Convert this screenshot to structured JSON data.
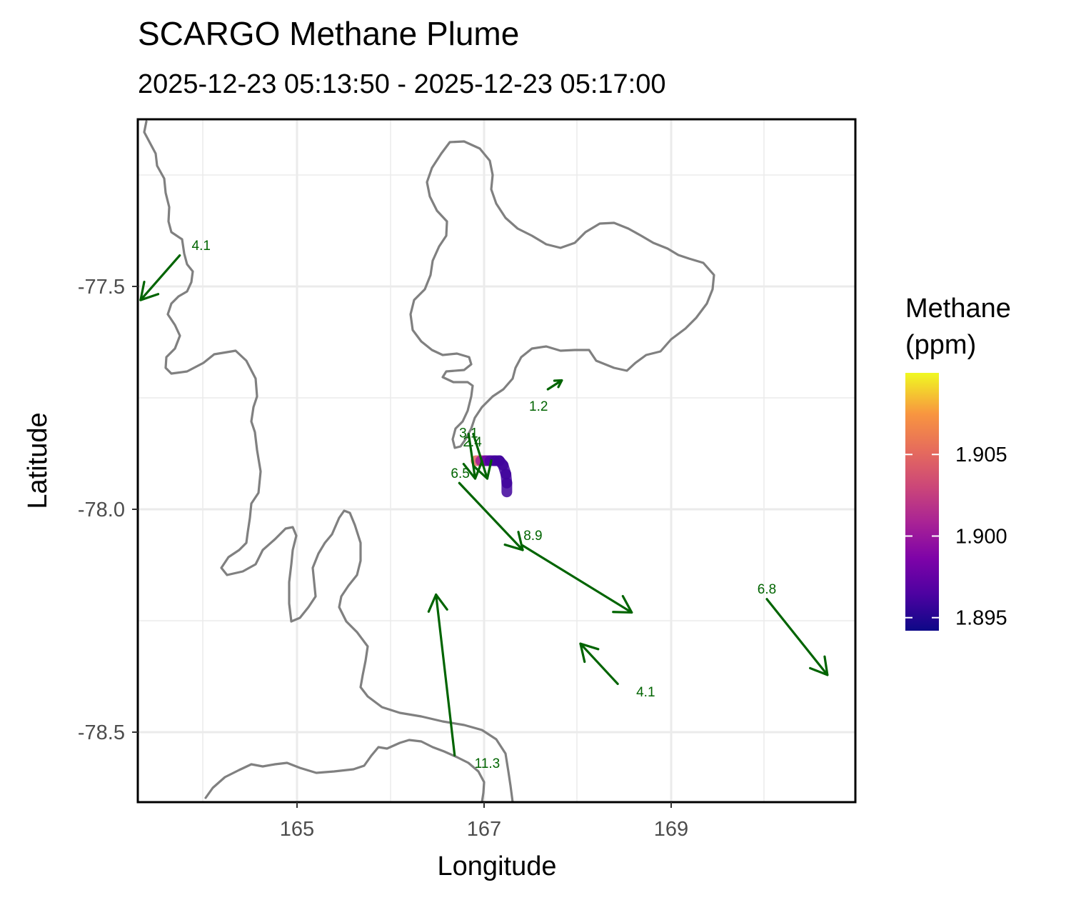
{
  "title": "SCARGO Methane Plume",
  "subtitle": "2025-12-23 05:13:50 - 2025-12-23 05:17:00",
  "x_axis": {
    "label": "Longitude",
    "ticks": [
      {
        "value": 165,
        "label": "165"
      },
      {
        "value": 167,
        "label": "167"
      },
      {
        "value": 169,
        "label": "169"
      }
    ],
    "range": [
      163.3,
      171.0
    ]
  },
  "y_axis": {
    "label": "Latitude",
    "ticks": [
      {
        "value": -77.5,
        "label": "-77.5"
      },
      {
        "value": -78.0,
        "label": "-78.0"
      },
      {
        "value": -78.5,
        "label": "-78.5"
      }
    ],
    "range": [
      -78.655,
      -77.125
    ]
  },
  "legend": {
    "title_line1": "Methane",
    "title_line2": "(ppm)",
    "range": [
      1.8942,
      1.91
    ],
    "ticks": [
      {
        "value": 1.905,
        "label": "1.905"
      },
      {
        "value": 1.9,
        "label": "1.900"
      },
      {
        "value": 1.895,
        "label": "1.895"
      }
    ]
  },
  "colors": {
    "wind": "#006400",
    "coast": "#808080",
    "panel_border": "#000000"
  },
  "wind_vectors": [
    {
      "label": "4.1",
      "lon0": 163.75,
      "lat0": -77.43,
      "lon1": 163.33,
      "lat1": -77.53,
      "label_lon": 163.98,
      "label_lat": -77.41
    },
    {
      "label": "1.2",
      "lon0": 167.7,
      "lat0": -77.73,
      "lon1": 167.85,
      "lat1": -77.71,
      "label_lon": 167.6,
      "label_lat": -77.77
    },
    {
      "label": "3.1",
      "lon0": 166.9,
      "lat0": -77.83,
      "lon1": 167.05,
      "lat1": -77.93,
      "label_lon": 166.85,
      "label_lat": -77.83
    },
    {
      "label": "2.4",
      "lon0": 166.85,
      "lat0": -77.83,
      "lon1": 166.92,
      "lat1": -77.93,
      "label_lon": 166.89,
      "label_lat": -77.85
    },
    {
      "label": "6.5",
      "lon0": 166.75,
      "lat0": -77.94,
      "lon1": 167.43,
      "lat1": -78.09,
      "label_lon": 166.76,
      "label_lat": -77.92
    },
    {
      "label": "8.9",
      "lon0": 167.43,
      "lat0": -78.08,
      "lon1": 168.6,
      "lat1": -78.23,
      "label_lon": 167.54,
      "label_lat": -78.06
    },
    {
      "label": "6.8",
      "lon0": 170.05,
      "lat0": -78.2,
      "lon1": 170.7,
      "lat1": -78.37,
      "label_lon": 170.05,
      "label_lat": -78.18
    },
    {
      "label": "4.1",
      "lon0": 168.45,
      "lat0": -78.39,
      "lon1": 168.05,
      "lat1": -78.3,
      "label_lon": 168.75,
      "label_lat": -78.41
    },
    {
      "label": "11.3",
      "lon0": 166.7,
      "lat0": -78.55,
      "lon1": 166.5,
      "lat1": -78.19,
      "label_lon": 167.05,
      "label_lat": -78.57
    }
  ],
  "plume": [
    {
      "lon": 166.93,
      "lat": -77.89,
      "ppm": 1.907
    },
    {
      "lon": 166.98,
      "lat": -77.89,
      "ppm": 1.903
    },
    {
      "lon": 167.03,
      "lat": -77.89,
      "ppm": 1.898
    },
    {
      "lon": 167.08,
      "lat": -77.89,
      "ppm": 1.897
    },
    {
      "lon": 167.13,
      "lat": -77.89,
      "ppm": 1.896
    },
    {
      "lon": 167.18,
      "lat": -77.89,
      "ppm": 1.896
    },
    {
      "lon": 167.22,
      "lat": -77.9,
      "ppm": 1.896
    },
    {
      "lon": 167.25,
      "lat": -77.92,
      "ppm": 1.896
    },
    {
      "lon": 167.26,
      "lat": -77.94,
      "ppm": 1.896
    },
    {
      "lon": 167.26,
      "lat": -77.96,
      "ppm": 1.896
    }
  ]
}
